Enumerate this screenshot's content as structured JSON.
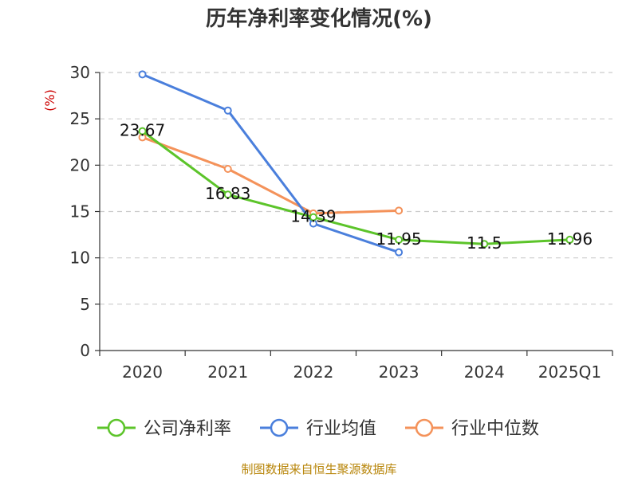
{
  "chart_data": {
    "type": "line",
    "title": "历年净利率变化情况(%)",
    "unit_label": "(%)",
    "categories": [
      "2020",
      "2021",
      "2022",
      "2023",
      "2024",
      "2025Q1"
    ],
    "ylim": [
      0,
      30
    ],
    "yticks": [
      0,
      5,
      10,
      15,
      20,
      25,
      30
    ],
    "grid": true,
    "legend_position": "bottom",
    "series": [
      {
        "name": "公司净利率",
        "color": "#5cc42a",
        "values": [
          23.67,
          16.83,
          14.39,
          11.95,
          11.5,
          11.96
        ],
        "labels": [
          "23.67",
          "16.83",
          "14.39",
          "11.95",
          "11.5",
          "11.96"
        ]
      },
      {
        "name": "行业均值",
        "color": "#4a7fdc",
        "values": [
          29.8,
          25.9,
          13.7,
          10.6,
          null,
          null
        ]
      },
      {
        "name": "行业中位数",
        "color": "#f4925a",
        "values": [
          23.0,
          19.6,
          14.8,
          15.1,
          null,
          null
        ]
      }
    ],
    "source": "制图数据来自恒生聚源数据库"
  }
}
